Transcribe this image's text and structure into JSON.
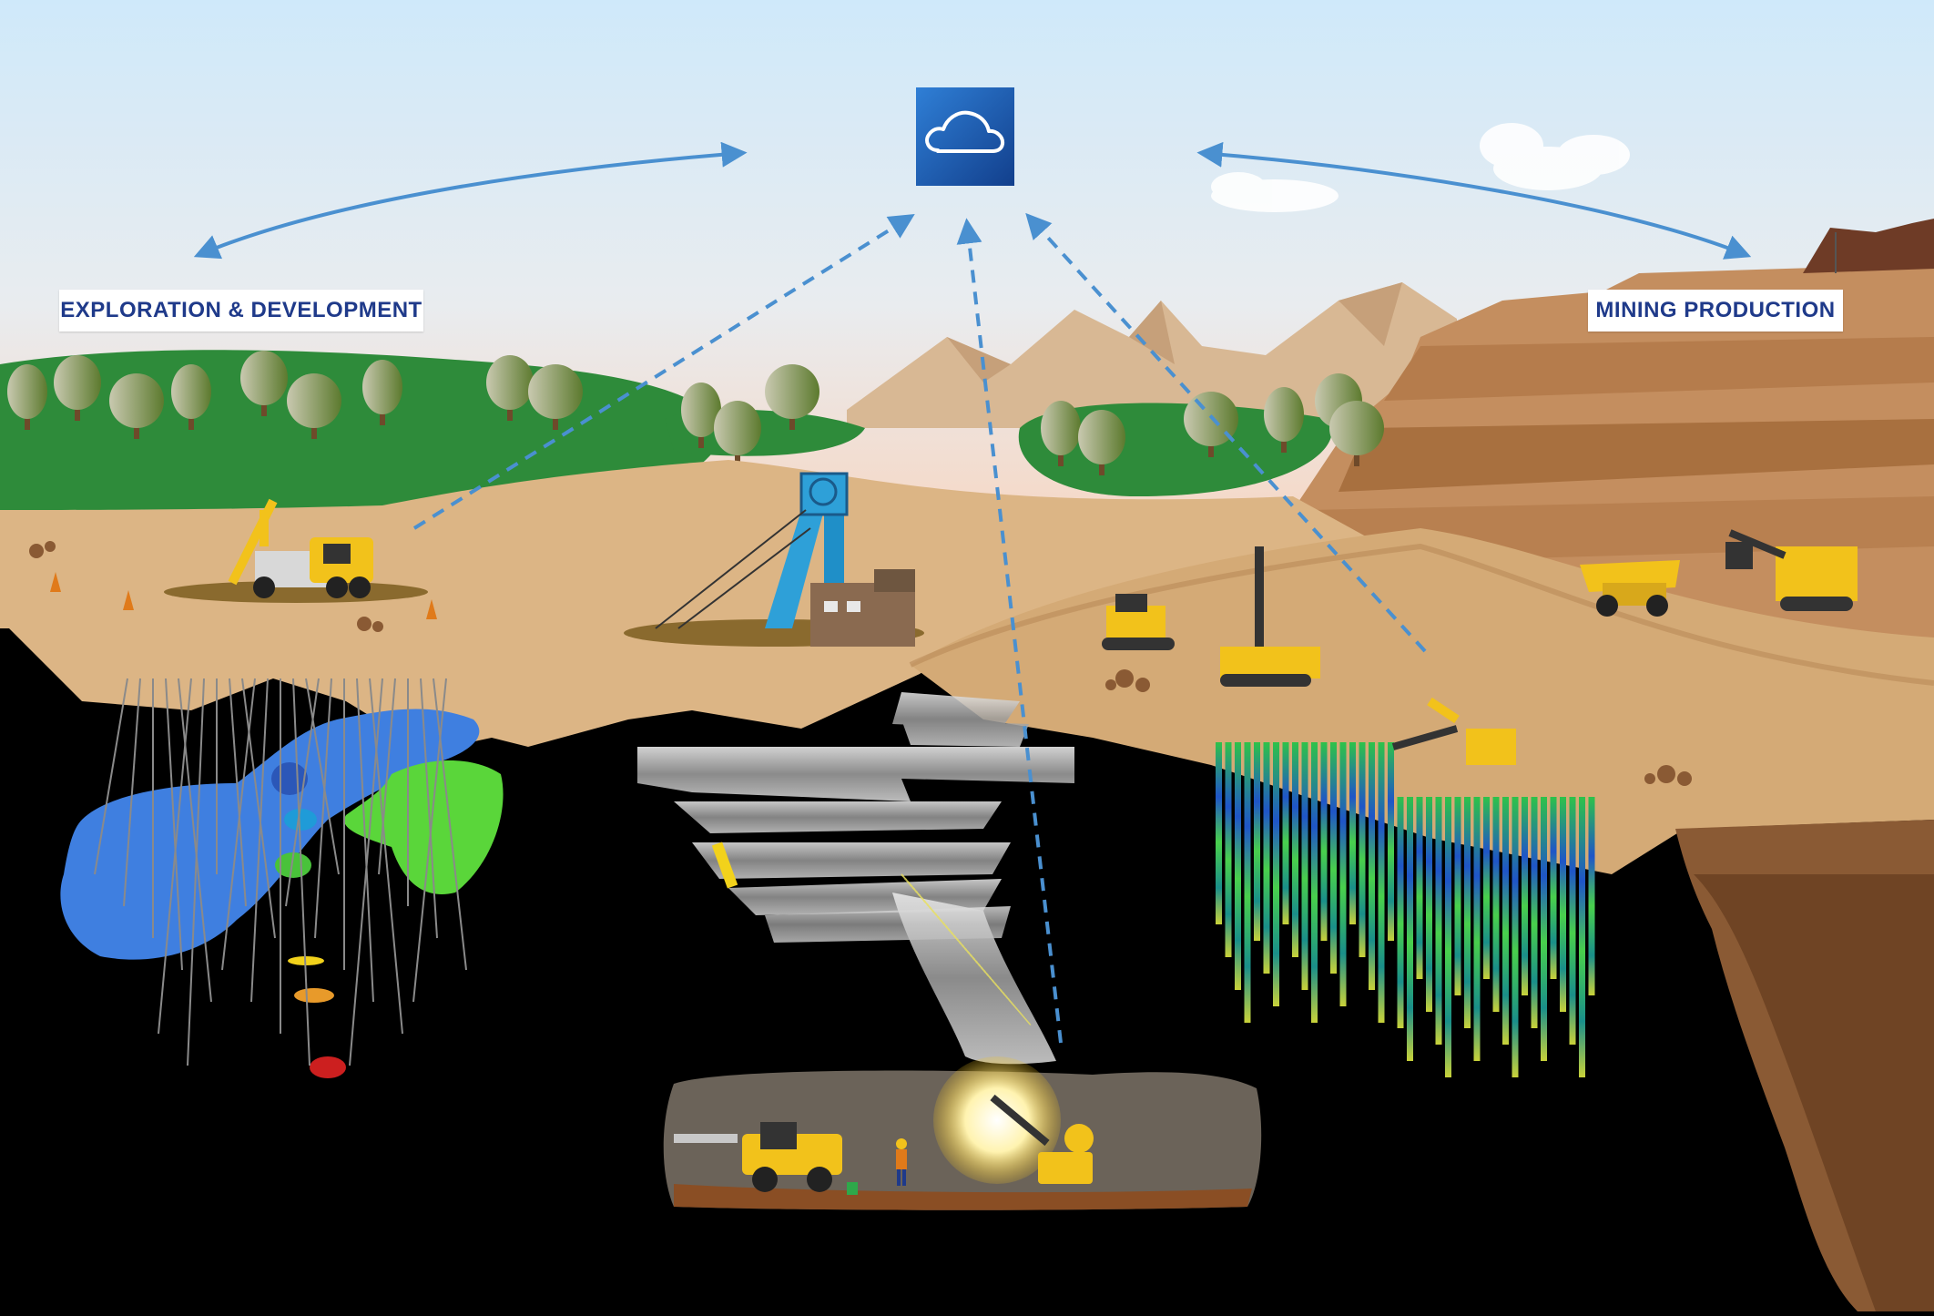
{
  "labels": {
    "left": "EXPLORATION & DEVELOPMENT",
    "right": "MINING PRODUCTION"
  },
  "icons": {
    "cloud": "cloud-icon"
  },
  "colors": {
    "sky_top": "#cfe9fa",
    "sky_bottom": "#f5dccd",
    "forest": "#2e8b3a",
    "ground": "#dcb585",
    "pit_dark": "#8a5a34",
    "label_text": "#1f3a8a",
    "arrow": "#4a90d0",
    "cloud_tile": "#1e5bb0",
    "machine_yellow": "#f2c21b",
    "orebody_blue": "#3f7fe0",
    "orebody_green": "#5ad63a"
  }
}
